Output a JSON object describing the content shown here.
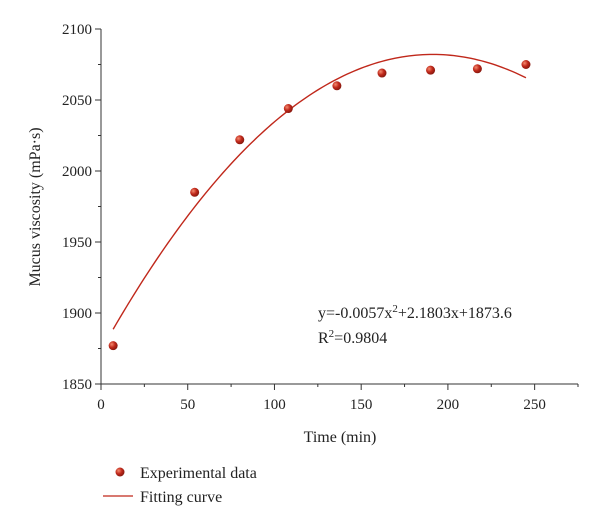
{
  "chart_data": {
    "type": "scatter",
    "xlabel": "Time (min)",
    "ylabel": "Mucus viscosity (mPa·s)",
    "xlim": [
      0,
      275
    ],
    "ylim": [
      1850,
      2100
    ],
    "xticks": [
      0,
      50,
      100,
      150,
      200,
      250
    ],
    "yticks": [
      1850,
      1900,
      1950,
      2000,
      2050,
      2100
    ],
    "grid": false,
    "legend_position": "bottom-left",
    "series": [
      {
        "name": "Experimental data",
        "kind": "markers",
        "color": "#c0281b",
        "x": [
          7,
          54,
          80,
          108,
          136,
          162,
          190,
          217,
          245
        ],
        "y": [
          1877,
          1985,
          2022,
          2044,
          2060,
          2069,
          2071,
          2072,
          2075
        ]
      },
      {
        "name": "Fitting curve",
        "kind": "line",
        "color": "#c0281b",
        "equation": {
          "a": -0.0057,
          "b": 2.1803,
          "c": 1873.6
        },
        "x_range": [
          7,
          245
        ]
      }
    ],
    "annotations": {
      "equation_prefix": "y=-0.0057x",
      "equation_exp": "2",
      "equation_suffix": "+2.1803x+1873.6",
      "r2_prefix": "R",
      "r2_exp": "2",
      "r2_suffix": "=0.9804"
    }
  }
}
